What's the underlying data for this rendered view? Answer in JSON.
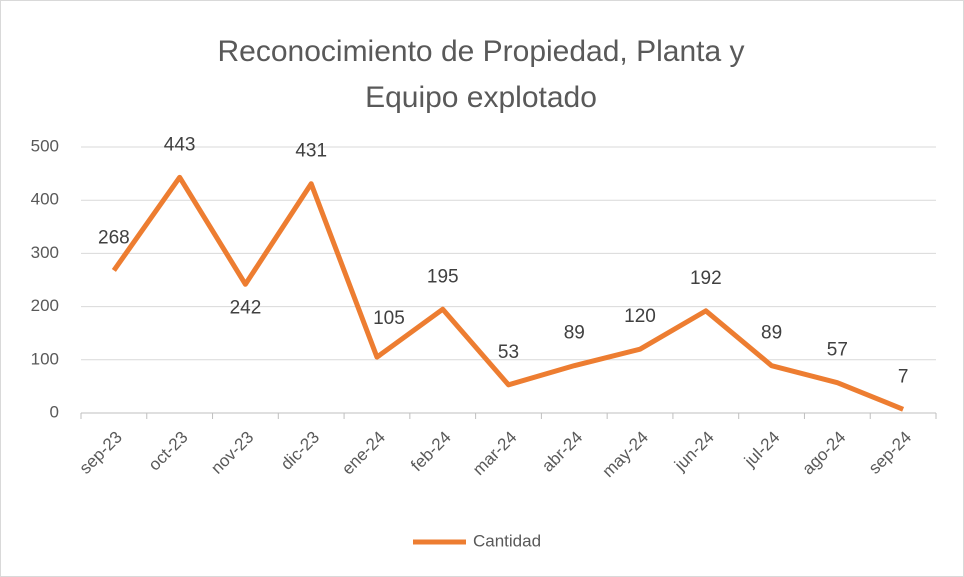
{
  "chart_data": {
    "type": "line",
    "title": "Reconocimiento de Propiedad, Planta y Equipo explotado",
    "categories": [
      "sep-23",
      "oct-23",
      "nov-23",
      "dic-23",
      "ene-24",
      "feb-24",
      "mar-24",
      "abr-24",
      "may-24",
      "jun-24",
      "jul-24",
      "ago-24",
      "sep-24"
    ],
    "series": [
      {
        "name": "Cantidad",
        "color": "#ed7d31",
        "values": [
          268,
          443,
          242,
          431,
          105,
          195,
          53,
          89,
          120,
          192,
          89,
          57,
          7
        ]
      }
    ],
    "ylim": [
      0,
      500
    ],
    "yticks": [
      0,
      100,
      200,
      300,
      400,
      500
    ],
    "grid": true,
    "legend": "bottom"
  }
}
